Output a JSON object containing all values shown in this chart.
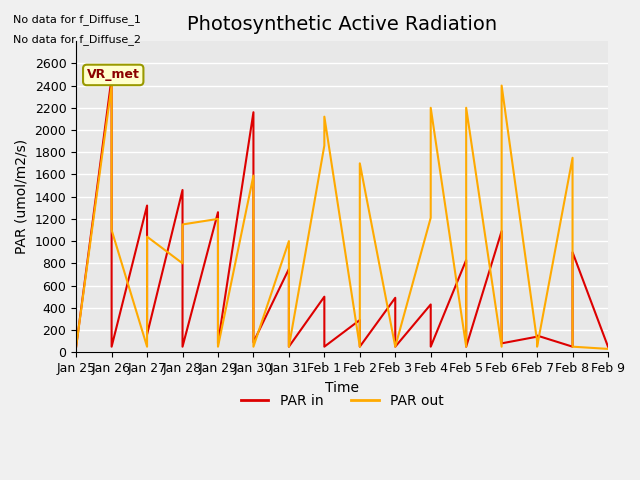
{
  "title": "Photosynthetic Active Radiation",
  "xlabel": "Time",
  "ylabel": "PAR (umol/m2/s)",
  "annotations": [
    "No data for f_Diffuse_1",
    "No data for f_Diffuse_2"
  ],
  "legend_label": "VR_met",
  "ylim": [
    0,
    2800
  ],
  "yticks": [
    0,
    200,
    400,
    600,
    800,
    1000,
    1200,
    1400,
    1600,
    1800,
    2000,
    2200,
    2400,
    2600
  ],
  "x_labels": [
    "Jan 25",
    "Jan 26",
    "Jan 27",
    "Jan 28",
    "Jan 29",
    "Jan 30",
    "Jan 31",
    "Feb 1",
    "Feb 2",
    "Feb 3",
    "Feb 4",
    "Feb 5",
    "Feb 6",
    "Feb 7",
    "Feb 8",
    "Feb 9"
  ],
  "par_in_x": [
    0,
    1,
    1,
    2,
    2,
    3,
    3,
    4,
    4,
    5,
    5,
    6,
    6,
    7,
    7,
    8,
    8,
    9,
    9,
    10,
    10,
    11,
    11,
    12,
    12,
    13,
    13,
    14,
    14,
    15
  ],
  "par_in_y": [
    50,
    2470,
    50,
    1320,
    160,
    1460,
    50,
    1260,
    80,
    2160,
    90,
    750,
    50,
    500,
    50,
    290,
    50,
    490,
    50,
    430,
    50,
    830,
    50,
    1090,
    80,
    140,
    150,
    50,
    900,
    50
  ],
  "par_out_x": [
    0,
    1,
    1,
    2,
    2,
    3,
    3,
    4,
    4,
    5,
    5,
    6,
    6,
    7,
    7,
    8,
    8,
    9,
    9,
    10,
    10,
    11,
    11,
    12,
    12,
    13,
    13,
    14,
    14,
    15
  ],
  "par_out_y": [
    50,
    2400,
    1100,
    50,
    1040,
    800,
    1150,
    1200,
    50,
    1590,
    50,
    1000,
    50,
    1860,
    2120,
    50,
    1700,
    50,
    50,
    1210,
    2200,
    50,
    2200,
    50,
    2400,
    100,
    50,
    1750,
    50,
    30
  ],
  "par_in_color": "#dd0000",
  "par_out_color": "#ffaa00",
  "background_color": "#e8e8e8",
  "grid_color": "#ffffff",
  "title_fontsize": 14,
  "axis_fontsize": 10,
  "tick_fontsize": 9
}
